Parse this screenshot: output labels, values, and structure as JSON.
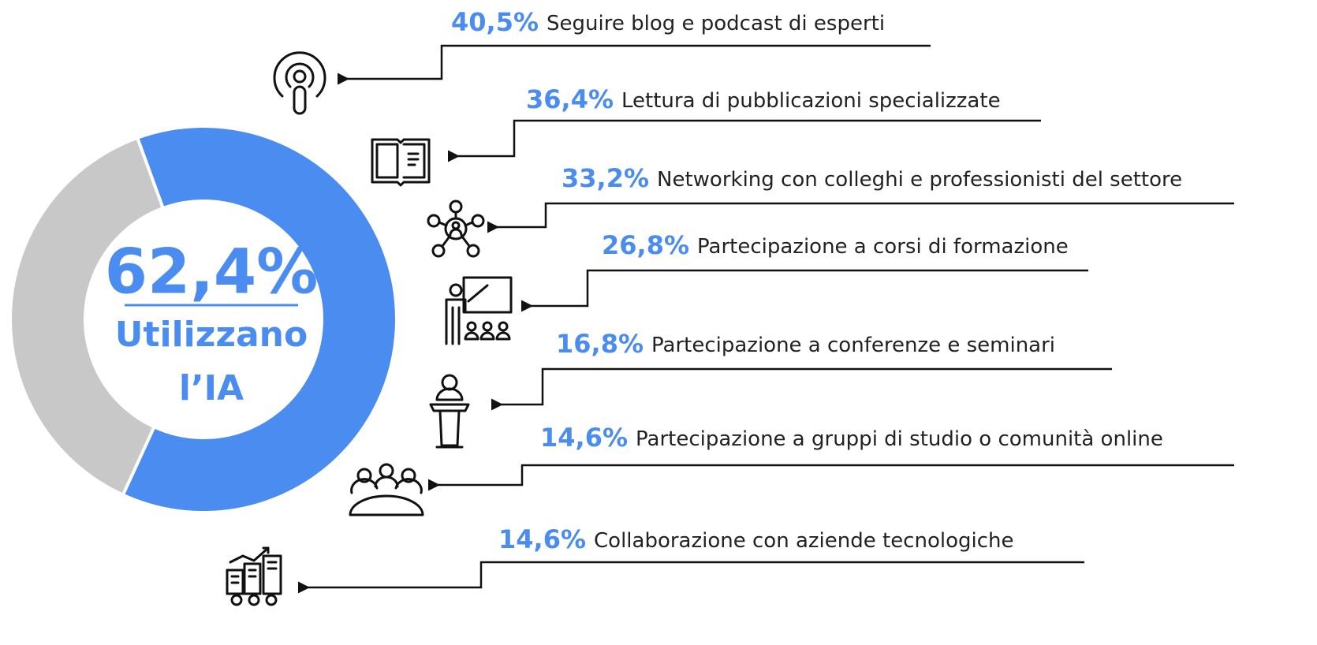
{
  "chart_data": {
    "type": "donut",
    "values": [
      62.4,
      37.6
    ],
    "value_labels": [
      "62,4%",
      null
    ],
    "colors": [
      "#4a8cf0",
      "#c8c8c8"
    ],
    "center_text": [
      "Utilizzano",
      "l’IA"
    ]
  },
  "items": [
    {
      "percent": "40,5%",
      "label": "Seguire blog e podcast di esperti"
    },
    {
      "percent": "36,4%",
      "label": "Lettura di pubblicazioni specializzate"
    },
    {
      "percent": "33,2%",
      "label": "Networking con colleghi e professionisti del settore"
    },
    {
      "percent": "26,8%",
      "label": "Partecipazione a corsi di formazione"
    },
    {
      "percent": "16,8%",
      "label": "Partecipazione a conferenze e seminari"
    },
    {
      "percent": "14,6%",
      "label": "Partecipazione a gruppi di studio o comunità online"
    },
    {
      "percent": "14,6%",
      "label": "Collaborazione con aziende tecnologiche"
    }
  ]
}
